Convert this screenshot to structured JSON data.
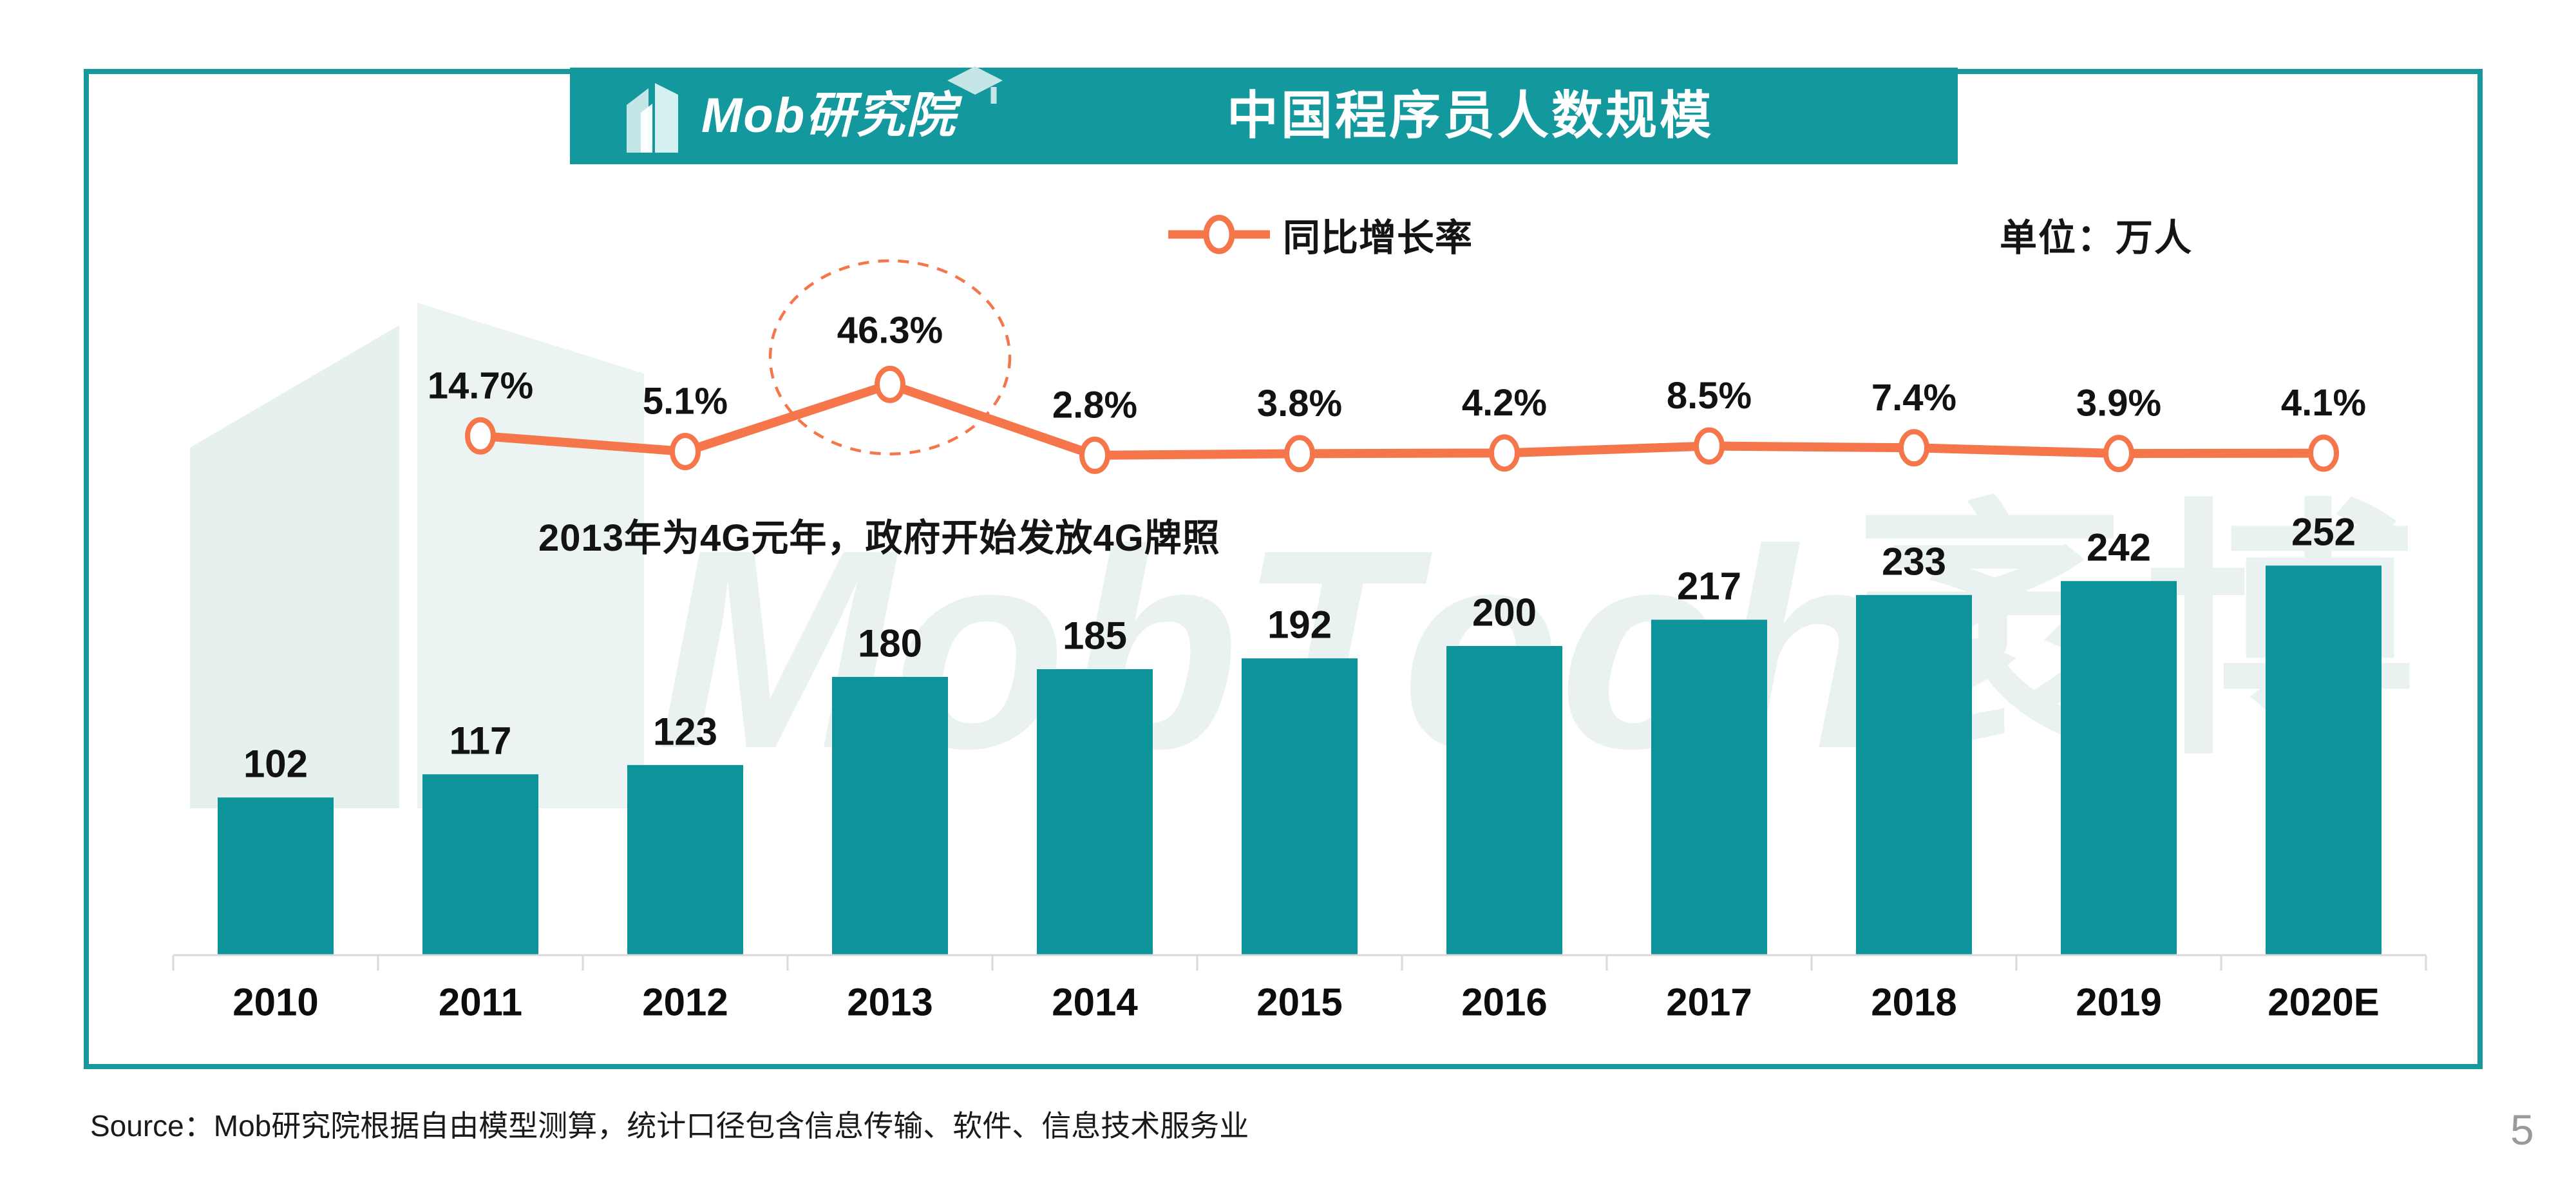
{
  "header": {
    "logo_text": "Mob研究院",
    "title": "中国程序员人数规模"
  },
  "legend": {
    "label": "同比增长率"
  },
  "unit_label": "单位：万人",
  "annotation": "2013年为4G元年，政府开始发放4G牌照",
  "watermark": {
    "text_latin": "MobTech",
    "text_cjk": "袤博"
  },
  "source_line": "Source：Mob研究院根据自由模型测算，统计口径包含信息传输、软件、信息技术服务业",
  "page_number": "5",
  "colors": {
    "banner_teal": "#12989d",
    "bar_teal": "#0c949a",
    "line_orange": "#f5764b",
    "axis_gray": "#d9d9d9",
    "watermark_teal": "#e9f2f1",
    "label_black": "#121212",
    "page_number_gray": "#9a9a9a"
  },
  "chart_data": {
    "type": "bar+line",
    "title": "中国程序员人数规模",
    "unit": "万人",
    "categories": [
      "2010",
      "2011",
      "2012",
      "2013",
      "2014",
      "2015",
      "2016",
      "2017",
      "2018",
      "2019",
      "2020E"
    ],
    "series": [
      {
        "name": "程序员人数",
        "type": "bar",
        "values": [
          102,
          117,
          123,
          180,
          185,
          192,
          200,
          217,
          233,
          242,
          252
        ]
      },
      {
        "name": "同比增长率",
        "type": "line",
        "values": [
          null,
          14.7,
          5.1,
          46.3,
          2.8,
          3.8,
          4.2,
          8.5,
          7.4,
          3.9,
          4.1
        ],
        "labels": [
          "",
          "14.7%",
          "5.1%",
          "46.3%",
          "2.8%",
          "3.8%",
          "4.2%",
          "8.5%",
          "7.4%",
          "3.9%",
          "4.1%"
        ]
      }
    ],
    "highlight": {
      "category": "2013",
      "label": "46.3%",
      "style": "dashed-circle"
    },
    "annotation": "2013年为4G元年，政府开始发放4G牌照",
    "legend_position": "top-center",
    "grid": false,
    "ylim_bar": [
      0,
      260
    ],
    "ylim_line_percent": [
      0,
      50
    ]
  }
}
